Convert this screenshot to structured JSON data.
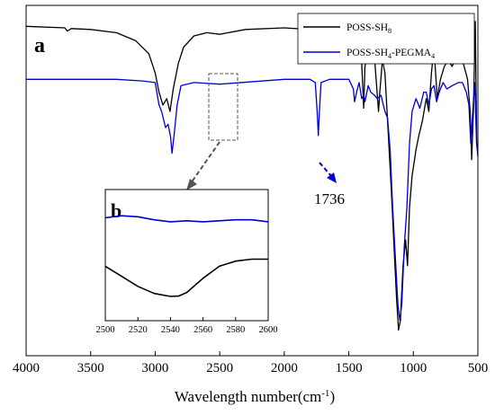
{
  "chart_data": [
    {
      "panel": "a",
      "type": "line",
      "title": "",
      "xlabel": "Wavelength number(cm",
      "xlabel_sup": "-1",
      "xlabel_tail": ")",
      "ylabel": "",
      "xlim": [
        4000,
        500
      ],
      "xticks": [
        4000,
        3500,
        3000,
        2500,
        2000,
        1500,
        1000,
        500
      ],
      "legend": {
        "placement": "top-right",
        "entries": [
          {
            "base": "POSS-SH",
            "sub": "8",
            "mid": "",
            "sub2": "",
            "color": "#000000"
          },
          {
            "base": "POSS-SH",
            "sub": "4",
            "mid": "-PEGMA",
            "sub2": "4",
            "color": "#0000cc"
          }
        ]
      },
      "annotation": {
        "text": "1736",
        "x": 1736,
        "color": "#0000cc"
      },
      "series": [
        {
          "name": "POSS-SH8",
          "color": "#000000",
          "points": [
            [
              4000,
              0.965
            ],
            [
              3700,
              0.96
            ],
            [
              3680,
              0.95
            ],
            [
              3650,
              0.958
            ],
            [
              3500,
              0.955
            ],
            [
              3300,
              0.945
            ],
            [
              3150,
              0.92
            ],
            [
              3050,
              0.88
            ],
            [
              3000,
              0.82
            ],
            [
              2970,
              0.76
            ],
            [
              2940,
              0.72
            ],
            [
              2910,
              0.74
            ],
            [
              2885,
              0.7
            ],
            [
              2860,
              0.77
            ],
            [
              2820,
              0.85
            ],
            [
              2780,
              0.9
            ],
            [
              2700,
              0.935
            ],
            [
              2600,
              0.945
            ],
            [
              2500,
              0.94
            ],
            [
              2300,
              0.955
            ],
            [
              2000,
              0.96
            ],
            [
              1800,
              0.955
            ],
            [
              1600,
              0.945
            ],
            [
              1520,
              0.93
            ],
            [
              1470,
              0.88
            ],
            [
              1460,
              0.92
            ],
            [
              1440,
              0.96
            ],
            [
              1425,
              0.94
            ],
            [
              1410,
              0.98
            ],
            [
              1400,
              0.85
            ],
            [
              1385,
              0.71
            ],
            [
              1375,
              0.84
            ],
            [
              1340,
              0.9
            ],
            [
              1300,
              0.86
            ],
            [
              1270,
              0.7
            ],
            [
              1260,
              0.76
            ],
            [
              1240,
              0.86
            ],
            [
              1220,
              0.82
            ],
            [
              1190,
              0.6
            ],
            [
              1170,
              0.45
            ],
            [
              1150,
              0.28
            ],
            [
              1130,
              0.12
            ],
            [
              1115,
              0.02
            ],
            [
              1100,
              0.05
            ],
            [
              1080,
              0.22
            ],
            [
              1060,
              0.3
            ],
            [
              1045,
              0.22
            ],
            [
              1030,
              0.4
            ],
            [
              1010,
              0.5
            ],
            [
              980,
              0.58
            ],
            [
              960,
              0.62
            ],
            [
              930,
              0.67
            ],
            [
              900,
              0.74
            ],
            [
              880,
              0.7
            ],
            [
              860,
              0.82
            ],
            [
              840,
              0.9
            ],
            [
              815,
              0.74
            ],
            [
              790,
              0.8
            ],
            [
              760,
              0.84
            ],
            [
              730,
              0.86
            ],
            [
              700,
              0.84
            ],
            [
              650,
              0.88
            ],
            [
              620,
              0.86
            ],
            [
              580,
              0.8
            ],
            [
              560,
              0.7
            ],
            [
              548,
              0.55
            ],
            [
              535,
              0.7
            ],
            [
              520,
              0.98
            ],
            [
              510,
              0.6
            ],
            [
              500,
              0.56
            ]
          ]
        },
        {
          "name": "POSS-SH4-PEGMA4",
          "color": "#0000cc",
          "points": [
            [
              4000,
              0.8
            ],
            [
              3600,
              0.8
            ],
            [
              3300,
              0.8
            ],
            [
              3100,
              0.795
            ],
            [
              3000,
              0.79
            ],
            [
              2970,
              0.72
            ],
            [
              2950,
              0.7
            ],
            [
              2920,
              0.65
            ],
            [
              2900,
              0.66
            ],
            [
              2880,
              0.62
            ],
            [
              2870,
              0.57
            ],
            [
              2855,
              0.62
            ],
            [
              2830,
              0.72
            ],
            [
              2800,
              0.78
            ],
            [
              2700,
              0.79
            ],
            [
              2500,
              0.785
            ],
            [
              2000,
              0.8
            ],
            [
              1800,
              0.8
            ],
            [
              1760,
              0.79
            ],
            [
              1745,
              0.7
            ],
            [
              1736,
              0.625
            ],
            [
              1728,
              0.7
            ],
            [
              1715,
              0.79
            ],
            [
              1650,
              0.8
            ],
            [
              1500,
              0.8
            ],
            [
              1465,
              0.77
            ],
            [
              1455,
              0.73
            ],
            [
              1440,
              0.76
            ],
            [
              1420,
              0.79
            ],
            [
              1400,
              0.74
            ],
            [
              1385,
              0.75
            ],
            [
              1375,
              0.73
            ],
            [
              1350,
              0.78
            ],
            [
              1330,
              0.76
            ],
            [
              1300,
              0.75
            ],
            [
              1280,
              0.74
            ],
            [
              1250,
              0.75
            ],
            [
              1220,
              0.7
            ],
            [
              1200,
              0.68
            ],
            [
              1180,
              0.58
            ],
            [
              1160,
              0.4
            ],
            [
              1140,
              0.25
            ],
            [
              1120,
              0.1
            ],
            [
              1105,
              0.05
            ],
            [
              1090,
              0.1
            ],
            [
              1070,
              0.28
            ],
            [
              1050,
              0.4
            ],
            [
              1030,
              0.6
            ],
            [
              1010,
              0.7
            ],
            [
              980,
              0.74
            ],
            [
              950,
              0.71
            ],
            [
              920,
              0.76
            ],
            [
              900,
              0.76
            ],
            [
              880,
              0.72
            ],
            [
              860,
              0.77
            ],
            [
              840,
              0.78
            ],
            [
              820,
              0.73
            ],
            [
              800,
              0.76
            ],
            [
              770,
              0.79
            ],
            [
              740,
              0.77
            ],
            [
              700,
              0.78
            ],
            [
              650,
              0.79
            ],
            [
              620,
              0.79
            ],
            [
              590,
              0.76
            ],
            [
              570,
              0.72
            ],
            [
              555,
              0.6
            ],
            [
              540,
              0.7
            ],
            [
              525,
              0.79
            ],
            [
              510,
              0.6
            ],
            [
              500,
              0.58
            ]
          ]
        }
      ]
    },
    {
      "panel": "b",
      "type": "line",
      "title": "",
      "xlabel": "",
      "ylabel": "",
      "xlim": [
        2500,
        2600
      ],
      "xticks": [
        2500,
        2520,
        2540,
        2560,
        2580,
        2600
      ],
      "series": [
        {
          "name": "POSS-SH4-PEGMA4",
          "color": "#0000cc",
          "points": [
            [
              2500,
              0.86
            ],
            [
              2510,
              0.87
            ],
            [
              2520,
              0.865
            ],
            [
              2530,
              0.85
            ],
            [
              2540,
              0.84
            ],
            [
              2550,
              0.845
            ],
            [
              2560,
              0.84
            ],
            [
              2570,
              0.845
            ],
            [
              2580,
              0.85
            ],
            [
              2590,
              0.85
            ],
            [
              2600,
              0.84
            ]
          ]
        },
        {
          "name": "POSS-SH8",
          "color": "#000000",
          "points": [
            [
              2500,
              0.62
            ],
            [
              2510,
              0.57
            ],
            [
              2520,
              0.52
            ],
            [
              2530,
              0.485
            ],
            [
              2540,
              0.47
            ],
            [
              2545,
              0.472
            ],
            [
              2550,
              0.49
            ],
            [
              2560,
              0.56
            ],
            [
              2570,
              0.62
            ],
            [
              2580,
              0.645
            ],
            [
              2590,
              0.655
            ],
            [
              2600,
              0.655
            ]
          ]
        }
      ]
    }
  ]
}
